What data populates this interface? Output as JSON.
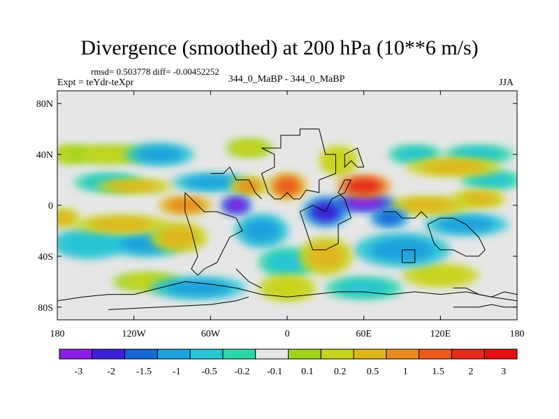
{
  "chart_data": {
    "type": "heatmap",
    "title": "Divergence (smoothed) at 200 hPa (10**6 m/s)",
    "stats_line": "rmsd= 0.503778 diff= -0.00452252",
    "left_label": "Expt = teYdr-teXpr",
    "center_label": "344_0_MaBP - 344_0_MaBP",
    "right_label": "JJA",
    "x_range": [
      -180,
      180
    ],
    "y_range": [
      -90,
      90
    ],
    "xticks": [
      {
        "value": -180,
        "label": "180"
      },
      {
        "value": -120,
        "label": "120W"
      },
      {
        "value": -60,
        "label": "60W"
      },
      {
        "value": 0,
        "label": "0"
      },
      {
        "value": 60,
        "label": "60E"
      },
      {
        "value": 120,
        "label": "120E"
      },
      {
        "value": 180,
        "label": "180"
      }
    ],
    "yticks": [
      {
        "value": 80,
        "label": "80N"
      },
      {
        "value": 40,
        "label": "40N"
      },
      {
        "value": 0,
        "label": "0"
      },
      {
        "value": -40,
        "label": "40S"
      },
      {
        "value": -80,
        "label": "80S"
      }
    ],
    "colorbar": {
      "colors": [
        "#8c1fe6",
        "#3a20d8",
        "#1567d6",
        "#1aa1de",
        "#27c4d4",
        "#2cd6a8",
        "#e6e6e6",
        "#9ed41a",
        "#c8d41c",
        "#e0b51a",
        "#ea8a1c",
        "#ec5a1c",
        "#e62a1c",
        "#e60f10"
      ],
      "labels": [
        "-3",
        "-2",
        "-1.5",
        "-1",
        "-0.5",
        "-0.2",
        "-0.1",
        "0.1",
        "0.2",
        "0.5",
        "1",
        "1.5",
        "2",
        "3"
      ]
    },
    "features": [
      {
        "lon": -40,
        "lat": 0,
        "value": -3.0,
        "rx": 8,
        "ry": 5
      },
      {
        "lon": 30,
        "lat": -5,
        "value": -2.0,
        "rx": 12,
        "ry": 8
      },
      {
        "lon": 60,
        "lat": 2,
        "value": -2.5,
        "rx": 16,
        "ry": 5
      },
      {
        "lon": 80,
        "lat": -10,
        "value": -1.5,
        "rx": 10,
        "ry": 5
      },
      {
        "lon": -60,
        "lat": 18,
        "value": -0.8,
        "rx": 20,
        "ry": 5
      },
      {
        "lon": -100,
        "lat": 40,
        "value": -0.8,
        "rx": 18,
        "ry": 6
      },
      {
        "lon": -140,
        "lat": 18,
        "value": -0.6,
        "rx": 18,
        "ry": 5
      },
      {
        "lon": -110,
        "lat": -30,
        "value": -0.8,
        "rx": 20,
        "ry": 7
      },
      {
        "lon": -155,
        "lat": -30,
        "value": -0.7,
        "rx": 20,
        "ry": 8
      },
      {
        "lon": -20,
        "lat": -20,
        "value": -0.8,
        "rx": 14,
        "ry": 9
      },
      {
        "lon": 90,
        "lat": -35,
        "value": -0.8,
        "rx": 25,
        "ry": 9
      },
      {
        "lon": 140,
        "lat": -15,
        "value": -1.0,
        "rx": 22,
        "ry": 6
      },
      {
        "lon": 150,
        "lat": 40,
        "value": -0.6,
        "rx": 18,
        "ry": 5
      },
      {
        "lon": 100,
        "lat": 40,
        "value": -0.5,
        "rx": 14,
        "ry": 5
      },
      {
        "lon": -70,
        "lat": -65,
        "value": -0.8,
        "rx": 25,
        "ry": 6
      },
      {
        "lon": 60,
        "lat": -65,
        "value": -0.6,
        "rx": 20,
        "ry": 6
      },
      {
        "lon": 0,
        "lat": -45,
        "value": -0.6,
        "rx": 15,
        "ry": 8
      },
      {
        "lon": 160,
        "lat": 20,
        "value": -0.5,
        "rx": 16,
        "ry": 5
      },
      {
        "lon": -80,
        "lat": 0,
        "value": 1.6,
        "rx": 14,
        "ry": 5
      },
      {
        "lon": 0,
        "lat": 15,
        "value": 1.8,
        "rx": 10,
        "ry": 7
      },
      {
        "lon": 60,
        "lat": 15,
        "value": 2.5,
        "rx": 14,
        "ry": 6
      },
      {
        "lon": 110,
        "lat": 0,
        "value": 1.2,
        "rx": 22,
        "ry": 5
      },
      {
        "lon": 150,
        "lat": 5,
        "value": 1.0,
        "rx": 14,
        "ry": 5
      },
      {
        "lon": -175,
        "lat": -10,
        "value": 1.2,
        "rx": 8,
        "ry": 5
      },
      {
        "lon": -30,
        "lat": 15,
        "value": 1.3,
        "rx": 10,
        "ry": 5
      },
      {
        "lon": -120,
        "lat": 15,
        "value": 0.8,
        "rx": 20,
        "ry": 4
      },
      {
        "lon": -130,
        "lat": -15,
        "value": 0.8,
        "rx": 25,
        "ry": 5
      },
      {
        "lon": -85,
        "lat": -25,
        "value": 0.8,
        "rx": 15,
        "ry": 8
      },
      {
        "lon": 40,
        "lat": 35,
        "value": 0.7,
        "rx": 10,
        "ry": 8
      },
      {
        "lon": 130,
        "lat": 30,
        "value": 0.8,
        "rx": 25,
        "ry": 5
      },
      {
        "lon": -140,
        "lat": 40,
        "value": 0.6,
        "rx": 22,
        "ry": 5
      },
      {
        "lon": 30,
        "lat": -40,
        "value": 0.8,
        "rx": 14,
        "ry": 10
      },
      {
        "lon": 120,
        "lat": -55,
        "value": 0.7,
        "rx": 20,
        "ry": 6
      },
      {
        "lon": 0,
        "lat": -65,
        "value": 0.7,
        "rx": 15,
        "ry": 7
      },
      {
        "lon": -110,
        "lat": -60,
        "value": 0.6,
        "rx": 18,
        "ry": 5
      },
      {
        "lon": -30,
        "lat": 45,
        "value": 0.5,
        "rx": 12,
        "ry": 5
      },
      {
        "lon": -170,
        "lat": 40,
        "value": 0.4,
        "rx": 10,
        "ry": 5
      }
    ]
  }
}
